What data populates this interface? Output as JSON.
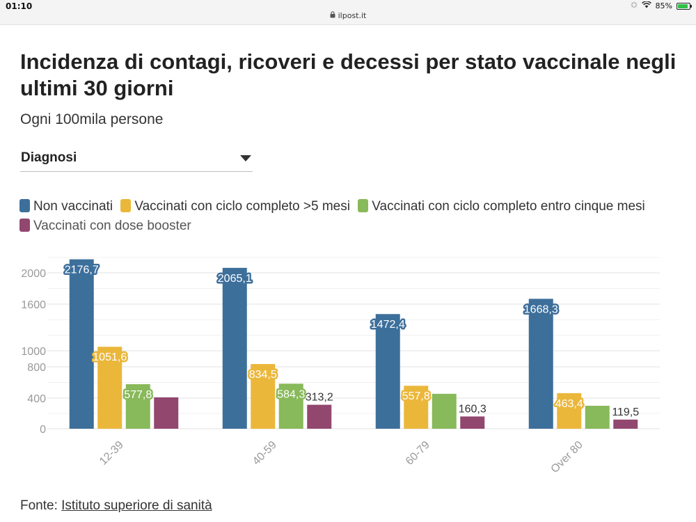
{
  "status_bar": {
    "time": "01:10",
    "url": "ilpost.it",
    "battery": "85%",
    "battery_level": 0.85
  },
  "header": {
    "title": "Incidenza di contagi, ricoveri e decessi per stato vaccinale negli ultimi 30 giorni",
    "subtitle": "Ogni 100mila persone"
  },
  "filter": {
    "selected": "Diagnosi"
  },
  "source": {
    "prefix": "Fonte: ",
    "link_text": "Istituto superiore di sanità"
  },
  "colors": {
    "non_vaccinati": "#3d6f9b",
    "completo_oltre_5": "#ebb73b",
    "completo_entro_5": "#88b95a",
    "booster": "#92476f",
    "grid": "#e6e6e6",
    "tick": "#999999"
  },
  "chart_data": {
    "type": "bar",
    "title": "Incidenza di contagi, ricoveri e decessi per stato vaccinale negli ultimi 30 giorni",
    "subtitle": "Ogni 100mila persone",
    "xlabel": "",
    "ylabel": "",
    "ylim": [
      0,
      2200
    ],
    "yticks": [
      {
        "value": 0,
        "label": "0"
      },
      {
        "value": 400,
        "label": "400"
      },
      {
        "value": 800,
        "label": "800"
      },
      {
        "value": 1000,
        "label": "1000"
      },
      {
        "value": 1600,
        "label": "1600"
      },
      {
        "value": 2000,
        "label": "2000"
      }
    ],
    "grid": true,
    "legend_position": "top",
    "categories": [
      "12-39",
      "40-59",
      "60-79",
      "Over 80"
    ],
    "series": [
      {
        "name": "Non vaccinati",
        "color": "#3d6f9b",
        "values": [
          2176.7,
          2065.1,
          1472.4,
          1668.3
        ],
        "labels": [
          "2176,7",
          "2065,1",
          "1472,4",
          "1668,3"
        ]
      },
      {
        "name": "Vaccinati con ciclo completo >5 mesi",
        "color": "#ebb73b",
        "values": [
          1051.6,
          834.5,
          557.8,
          463.4
        ],
        "labels": [
          "1051,6",
          "834,5",
          "557,8",
          "463,4"
        ]
      },
      {
        "name": "Vaccinati con ciclo completo entro cinque mesi",
        "color": "#88b95a",
        "values": [
          577.8,
          584.3,
          455,
          300
        ],
        "labels": [
          "577,8",
          "584,3",
          "",
          ""
        ]
      },
      {
        "name": "Vaccinati con dose booster",
        "color": "#92476f",
        "values": [
          410,
          313.2,
          160.3,
          119.5
        ],
        "labels": [
          "",
          "313,2",
          "160,3",
          "119,5"
        ]
      }
    ]
  }
}
